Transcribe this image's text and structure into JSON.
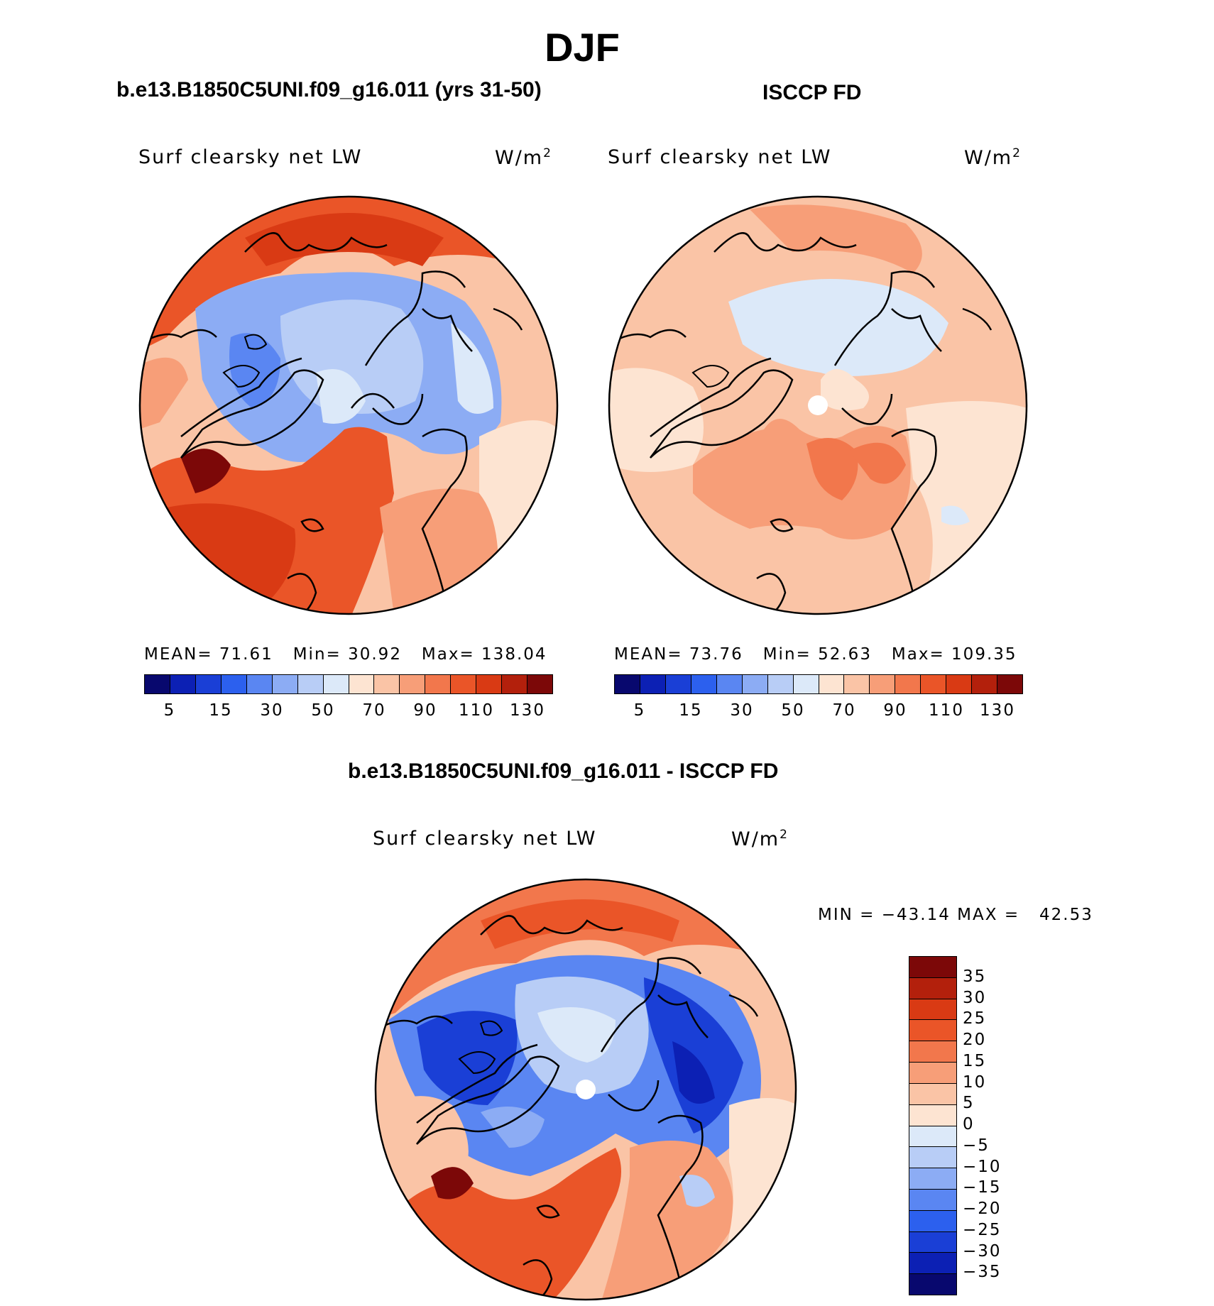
{
  "page_title": "DJF",
  "panels": [
    {
      "case_title": "b.e13.B1850C5UNI.f09_g16.011 (yrs 31-50)",
      "variable": "Surf clearsky net LW",
      "units_base": "W/m",
      "units_exp": "2",
      "stats": {
        "mean_label": "MEAN=",
        "mean": "71.61",
        "min_label": "Min=",
        "min": "30.92",
        "max_label": "Max=",
        "max": "138.04"
      }
    },
    {
      "case_title": "ISCCP FD",
      "variable": "Surf clearsky net LW",
      "units_base": "W/m",
      "units_exp": "2",
      "stats": {
        "mean_label": "MEAN=",
        "mean": "73.76",
        "min_label": "Min=",
        "min": "52.63",
        "max_label": "Max=",
        "max": "109.35"
      }
    },
    {
      "case_title": "b.e13.B1850C5UNI.f09_g16.011 - ISCCP FD",
      "variable": "Surf clearsky net LW",
      "units_base": "W/m",
      "units_exp": "2",
      "stats": {
        "min_label": "MIN =",
        "min": "−43.14",
        "max_label": "MAX =",
        "max": "42.53"
      }
    }
  ],
  "colorbar_abs": {
    "colors": [
      "#08086e",
      "#0c20b4",
      "#1a3fd6",
      "#2c60ee",
      "#5a86f2",
      "#8cacf4",
      "#b8cdf6",
      "#dce9f9",
      "#fde4d2",
      "#fac4a6",
      "#f79e78",
      "#f2774c",
      "#ea5528",
      "#d93a14",
      "#b3200c",
      "#7c0808"
    ],
    "labels": [
      "5",
      "15",
      "30",
      "50",
      "70",
      "90",
      "110",
      "130"
    ]
  },
  "colorbar_diff": {
    "colors": [
      "#7c0808",
      "#b3200c",
      "#d93a14",
      "#ea5528",
      "#f2774c",
      "#f79e78",
      "#fac4a6",
      "#fde4d2",
      "#dce9f9",
      "#b8cdf6",
      "#8cacf4",
      "#5a86f2",
      "#2c60ee",
      "#1a3fd6",
      "#0c20b4",
      "#08086e"
    ],
    "labels": [
      "35",
      "30",
      "25",
      "20",
      "15",
      "10",
      "5",
      "0",
      "−5",
      "−10",
      "−15",
      "−20",
      "−25",
      "−30",
      "−35"
    ]
  }
}
